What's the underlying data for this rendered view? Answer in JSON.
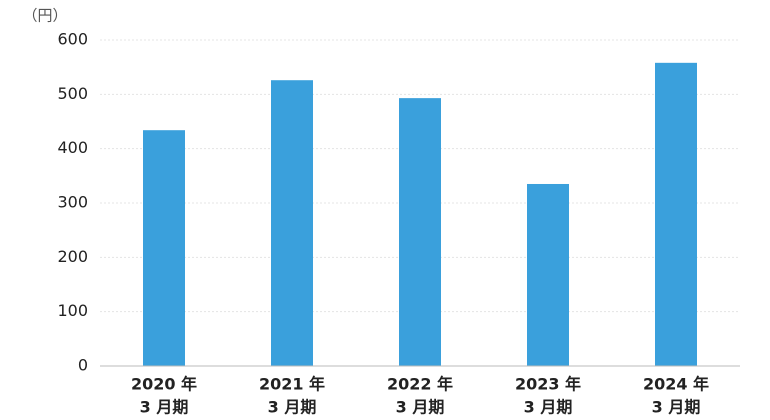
{
  "chart_data": {
    "type": "bar",
    "unit_label": "（円）",
    "categories": [
      [
        "2020 年",
        "3 月期"
      ],
      [
        "2021 年",
        "3 月期"
      ],
      [
        "2022 年",
        "3 月期"
      ],
      [
        "2023 年",
        "3 月期"
      ],
      [
        "2024 年",
        "3 月期"
      ]
    ],
    "values": [
      434,
      526,
      493,
      335,
      558
    ],
    "color": "#3aa0dc",
    "ylim": [
      0,
      600
    ],
    "yticks": [
      0,
      100,
      200,
      300,
      400,
      500,
      600
    ],
    "grid": true
  }
}
